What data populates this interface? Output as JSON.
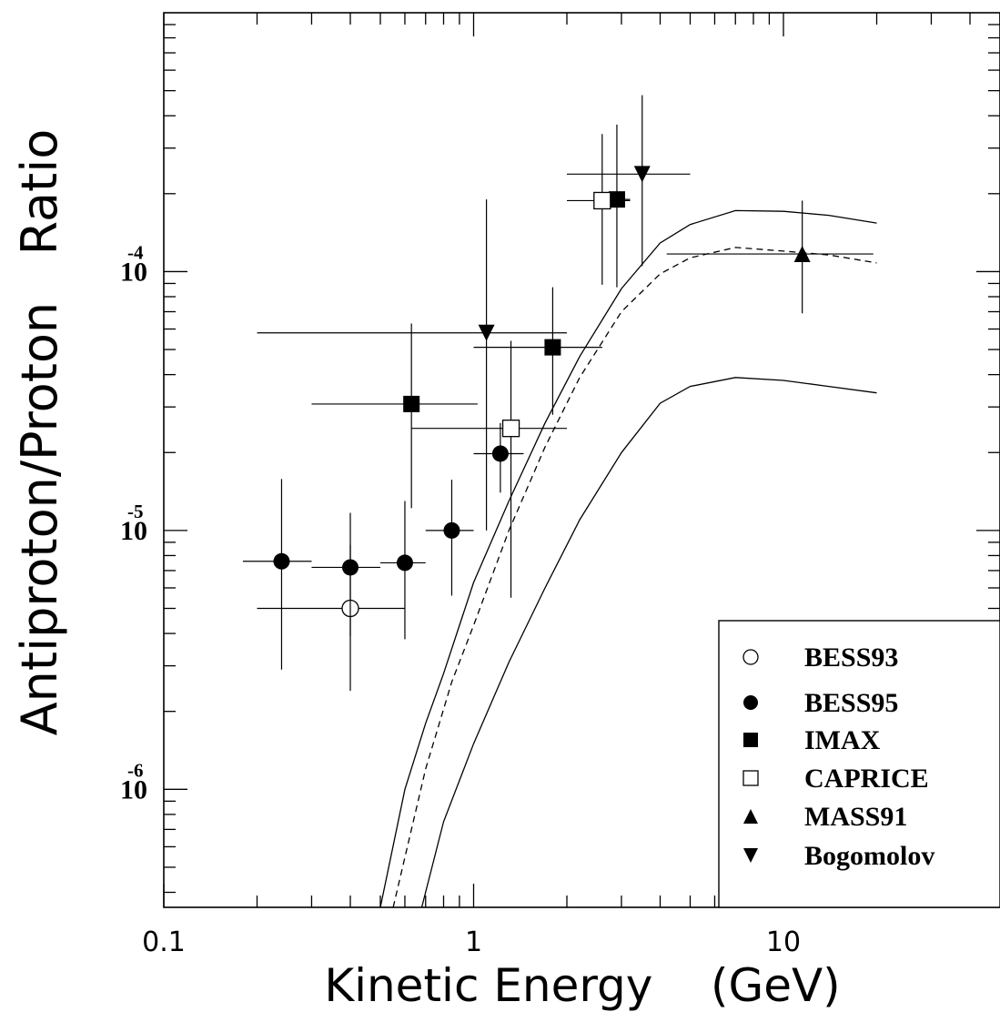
{
  "chart_data": {
    "type": "scatter",
    "title": "",
    "xlabel": "Kinetic Energy    (GeV)",
    "ylabel": "Antiproton/Proton   Ratio",
    "xscale": "log",
    "yscale": "log",
    "xlim": [
      0.1,
      50
    ],
    "ylim": [
      3.5e-07,
      0.001
    ],
    "grid": false,
    "legend_position": "bottom-right",
    "x_tick_labels": [
      {
        "value": 0.1,
        "label": "0.1"
      },
      {
        "value": 1,
        "label": "1"
      },
      {
        "value": 10,
        "label": "10"
      }
    ],
    "y_tick_labels": [
      {
        "value": 1e-06,
        "base": "10",
        "exp": "-6"
      },
      {
        "value": 1e-05,
        "base": "10",
        "exp": "-5"
      },
      {
        "value": 0.0001,
        "base": "10",
        "exp": "-4"
      }
    ],
    "series": [
      {
        "name": "BESS93",
        "marker": "open-circle",
        "points": [
          {
            "x": 0.4,
            "y": 5e-06,
            "xlo": 0.2,
            "xhi": 0.6,
            "ylo": 2.4e-06,
            "yhi": 8.8e-06
          }
        ]
      },
      {
        "name": "BESS95",
        "marker": "filled-circle",
        "points": [
          {
            "x": 0.24,
            "y": 7.6e-06,
            "xlo": 0.18,
            "xhi": 0.3,
            "ylo": 2.9e-06,
            "yhi": 1.58e-05
          },
          {
            "x": 0.4,
            "y": 7.2e-06,
            "xlo": 0.3,
            "xhi": 0.5,
            "ylo": 3.9e-06,
            "yhi": 1.17e-05
          },
          {
            "x": 0.6,
            "y": 7.5e-06,
            "xlo": 0.5,
            "xhi": 0.7,
            "ylo": 3.8e-06,
            "yhi": 1.3e-05
          },
          {
            "x": 0.85,
            "y": 1e-05,
            "xlo": 0.7,
            "xhi": 1.0,
            "ylo": 5.6e-06,
            "yhi": 1.57e-05
          },
          {
            "x": 1.22,
            "y": 1.98e-05,
            "xlo": 1.0,
            "xhi": 1.45,
            "ylo": 1.4e-05,
            "yhi": 2.6e-05
          }
        ]
      },
      {
        "name": "IMAX",
        "marker": "filled-square",
        "points": [
          {
            "x": 0.63,
            "y": 3.08e-05,
            "xlo": 0.3,
            "xhi": 1.03,
            "ylo": 1.22e-05,
            "yhi": 6.3e-05
          },
          {
            "x": 1.8,
            "y": 5.1e-05,
            "xlo": 1.0,
            "xhi": 2.6,
            "ylo": 2.8e-05,
            "yhi": 8.7e-05
          },
          {
            "x": 2.9,
            "y": 0.00019,
            "xlo": 2.6,
            "xhi": 3.2,
            "ylo": 8.7e-05,
            "yhi": 0.00037
          }
        ]
      },
      {
        "name": "CAPRICE",
        "marker": "open-square",
        "points": [
          {
            "x": 1.32,
            "y": 2.48e-05,
            "xlo": 0.63,
            "xhi": 2.0,
            "ylo": 5.5e-06,
            "yhi": 5.4e-05
          },
          {
            "x": 2.6,
            "y": 0.000188,
            "xlo": 2.0,
            "xhi": 3.2,
            "ylo": 8.9e-05,
            "yhi": 0.00034
          }
        ]
      },
      {
        "name": "MASS91",
        "marker": "filled-triangle-up",
        "points": [
          {
            "x": 11.5,
            "y": 0.000117,
            "xlo": 4.2,
            "xhi": 19.5,
            "ylo": 6.9e-05,
            "yhi": 0.000188
          }
        ]
      },
      {
        "name": "Bogomolov",
        "marker": "filled-triangle-down",
        "points": [
          {
            "x": 1.1,
            "y": 5.8e-05,
            "xlo": 0.2,
            "xhi": 2.0,
            "ylo": 1e-05,
            "yhi": 0.00019
          },
          {
            "x": 3.5,
            "y": 0.000238,
            "xlo": 2.0,
            "xhi": 5.0,
            "ylo": 0.000105,
            "yhi": 0.00048
          }
        ]
      }
    ],
    "curves": [
      {
        "style": "solid",
        "x": [
          0.5,
          0.6,
          0.7,
          0.8,
          1.0,
          1.3,
          1.7,
          2.2,
          3.0,
          4.0,
          5.0,
          7.0,
          10.0,
          14.0,
          20.0
        ],
        "y": [
          3.5e-07,
          1e-06,
          1.8e-06,
          2.8e-06,
          6.3e-06,
          1.3e-05,
          2.6e-05,
          4.7e-05,
          8.6e-05,
          0.000129,
          0.000152,
          0.000172,
          0.000171,
          0.000165,
          0.000154
        ]
      },
      {
        "style": "dashed",
        "x": [
          0.55,
          0.7,
          0.85,
          1.0,
          1.3,
          1.7,
          2.2,
          3.0,
          4.0,
          5.0,
          7.0,
          10.0,
          14.0,
          20.0
        ],
        "y": [
          3.5e-07,
          1.2e-06,
          2.6e-06,
          4.3e-06,
          1e-05,
          2.1e-05,
          3.9e-05,
          7e-05,
          9.8e-05,
          0.000113,
          0.000124,
          0.00012,
          0.000116,
          0.000108
        ]
      },
      {
        "style": "solid",
        "x": [
          0.68,
          0.8,
          1.0,
          1.3,
          1.7,
          2.2,
          3.0,
          4.0,
          5.0,
          7.0,
          10.0,
          14.0,
          20.0
        ],
        "y": [
          3.5e-07,
          7.5e-07,
          1.5e-06,
          3.1e-06,
          6e-06,
          1.1e-05,
          2e-05,
          3.1e-05,
          3.6e-05,
          3.9e-05,
          3.8e-05,
          3.6e-05,
          3.4e-05
        ]
      }
    ]
  }
}
